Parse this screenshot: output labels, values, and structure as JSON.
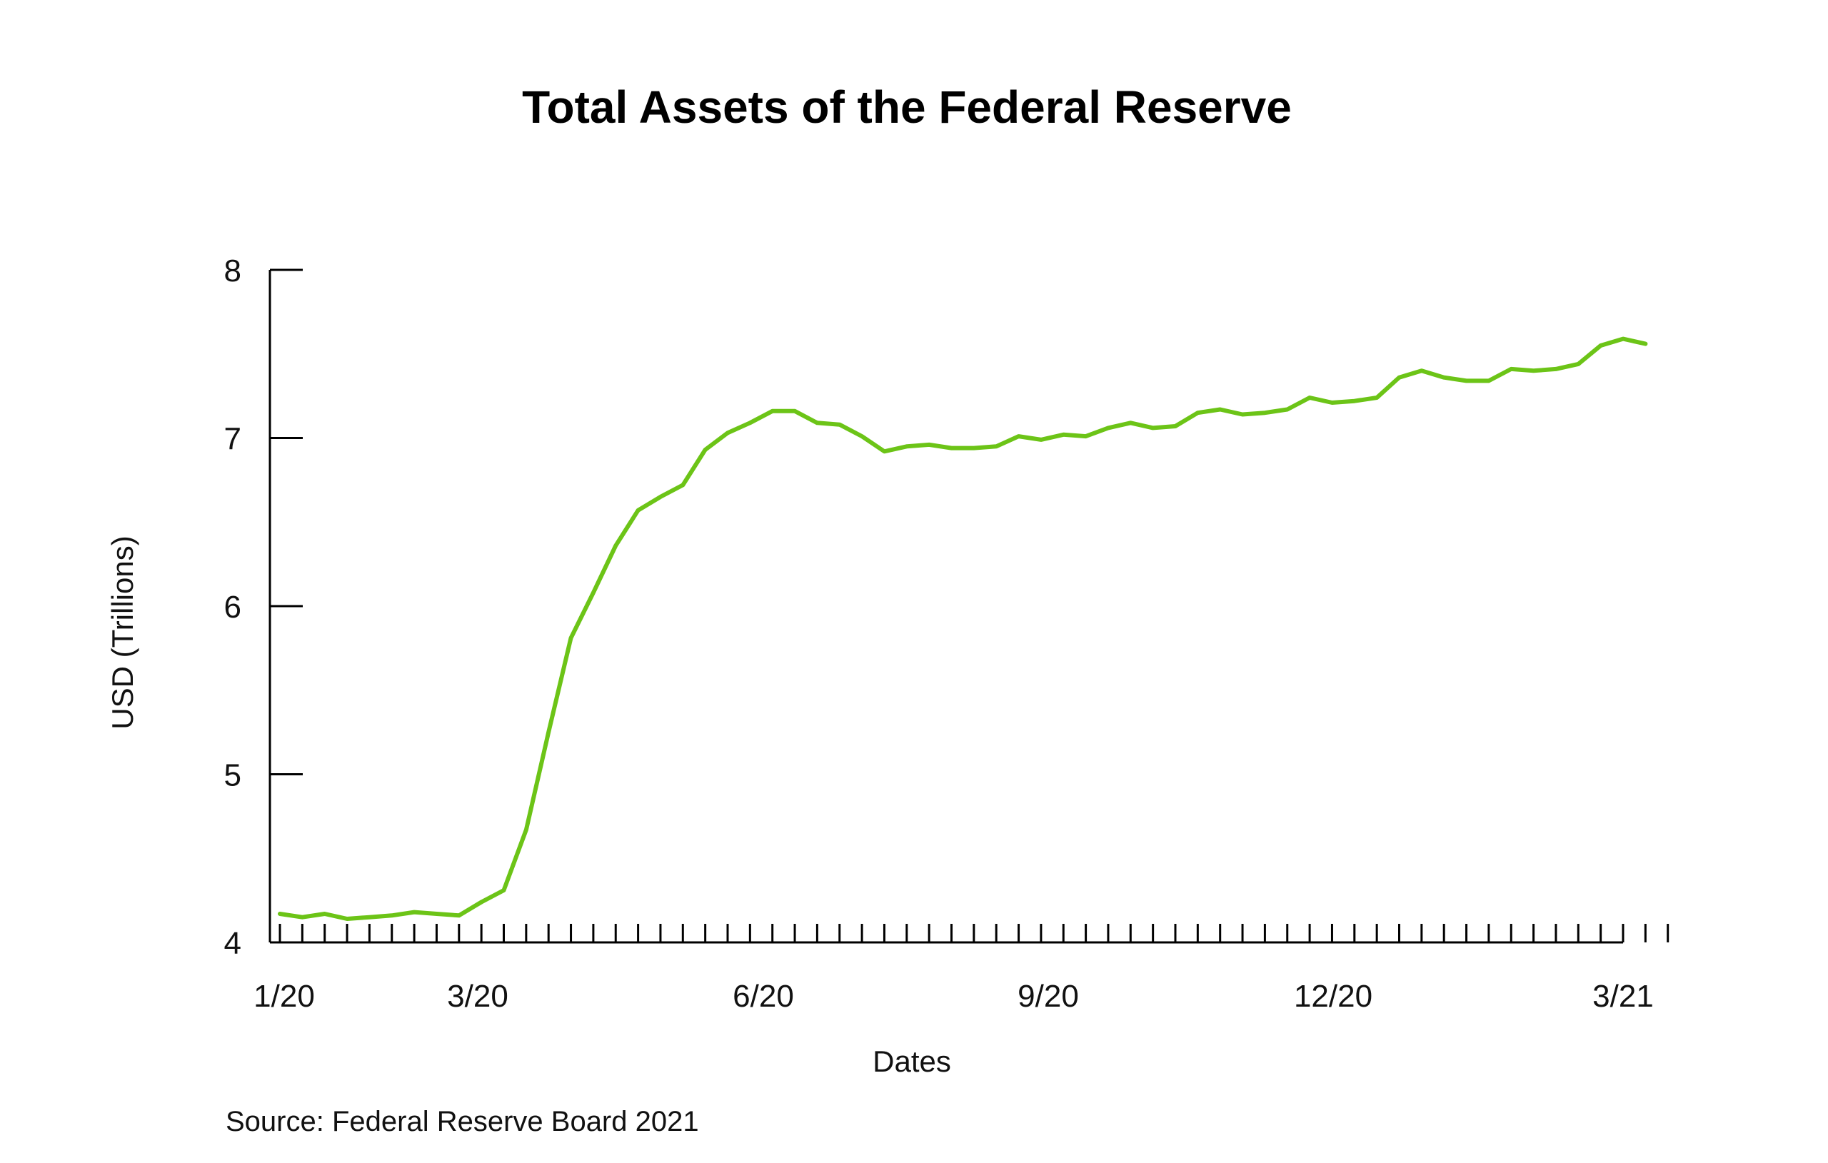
{
  "chart_data": {
    "type": "line",
    "title": "Total Assets of the Federal Reserve",
    "xlabel": "Dates",
    "ylabel": "USD (Trillions)",
    "source": "Source: Federal Reserve Board 2021",
    "ylim": [
      4,
      8
    ],
    "y_ticks": [
      4,
      5,
      6,
      7,
      8
    ],
    "x_tick_labels": [
      "1/20",
      "3/20",
      "6/20",
      "9/20",
      "12/20",
      "3/21"
    ],
    "grid": false,
    "legend": "none",
    "line_color": "#6cc417",
    "series": [
      {
        "values": [
          4.17,
          4.15,
          4.17,
          4.14,
          4.15,
          4.16,
          4.18,
          4.17,
          4.16,
          4.24,
          4.31,
          4.67,
          5.25,
          5.81,
          6.08,
          6.36,
          6.57,
          6.65,
          6.72,
          6.93,
          7.03,
          7.09,
          7.16,
          7.16,
          7.09,
          7.08,
          7.01,
          6.92,
          6.95,
          6.96,
          6.94,
          6.94,
          6.95,
          7.01,
          6.99,
          7.02,
          7.01,
          7.06,
          7.09,
          7.06,
          7.07,
          7.15,
          7.17,
          7.14,
          7.15,
          7.17,
          7.24,
          7.21,
          7.22,
          7.24,
          7.36,
          7.4,
          7.36,
          7.34,
          7.34,
          7.41,
          7.4,
          7.41,
          7.44,
          7.55,
          7.59,
          7.56
        ]
      }
    ]
  }
}
